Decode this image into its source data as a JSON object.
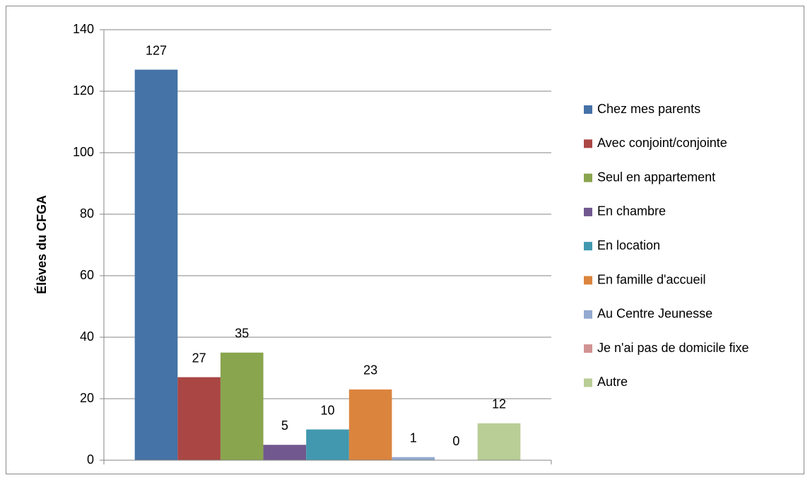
{
  "chart_data": {
    "type": "bar",
    "y_label": "Élèves du CFGA",
    "categories": [
      null
    ],
    "series": [
      {
        "name": "Chez mes parents",
        "color": "#4572a7",
        "values": [
          127
        ]
      },
      {
        "name": "Avec conjoint/conjointe",
        "color": "#aa4643",
        "values": [
          27
        ]
      },
      {
        "name": "Seul en appartement",
        "color": "#89a54e",
        "values": [
          35
        ]
      },
      {
        "name": "En chambre",
        "color": "#71588f",
        "values": [
          5
        ]
      },
      {
        "name": "En location",
        "color": "#4198af",
        "values": [
          10
        ]
      },
      {
        "name": "En famille d'accueil",
        "color": "#db843d",
        "values": [
          23
        ]
      },
      {
        "name": "Au Centre Jeunesse",
        "color": "#93a9cf",
        "values": [
          1
        ]
      },
      {
        "name": "Je n'ai pas de domicile fixe",
        "color": "#d19392",
        "values": [
          0
        ]
      },
      {
        "name": "Autre",
        "color": "#b9cd96",
        "values": [
          12
        ]
      }
    ],
    "ylim": [
      0,
      140
    ],
    "yticks": [
      0,
      20,
      40,
      60,
      80,
      100,
      120,
      140
    ],
    "grid": true,
    "legend": "right"
  }
}
